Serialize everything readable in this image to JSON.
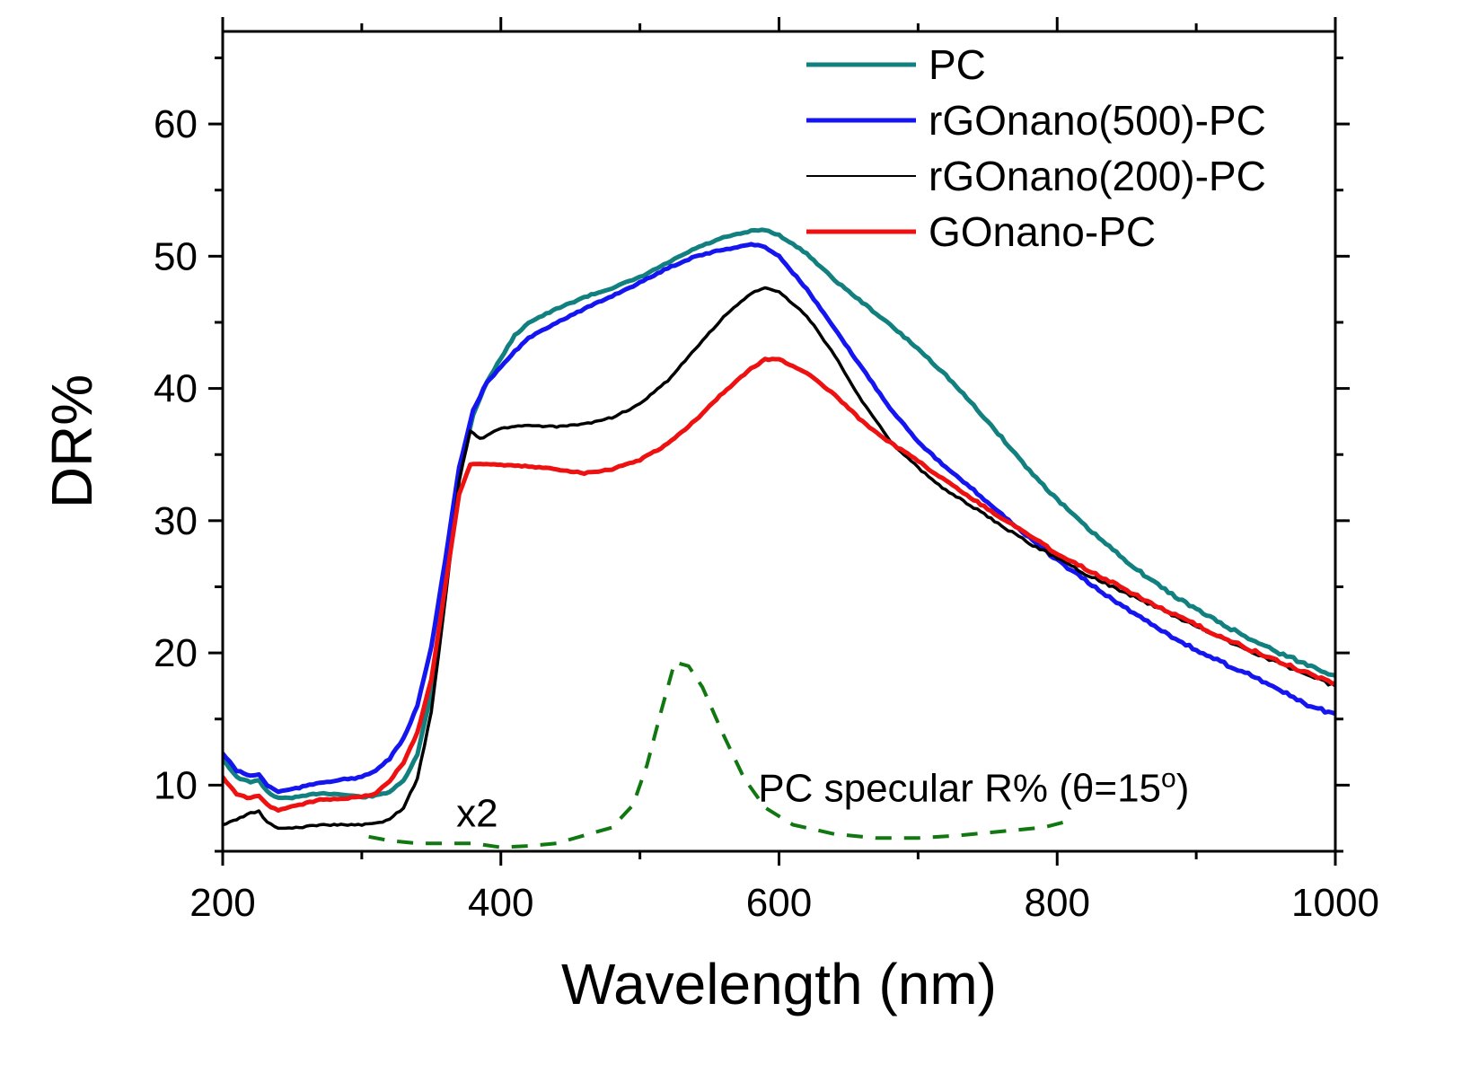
{
  "chart_data": {
    "type": "line",
    "title": "",
    "xlabel": "Wavelength (nm)",
    "ylabel": "DR%",
    "xlim": [
      200,
      1000
    ],
    "ylim": [
      5,
      67
    ],
    "xticks": [
      200,
      400,
      600,
      800,
      1000
    ],
    "yticks": [
      10,
      20,
      30,
      40,
      50,
      60
    ],
    "xtick_labels": [
      "200",
      "400",
      "600",
      "800",
      "1000"
    ],
    "ytick_labels": [
      "10",
      "20",
      "30",
      "40",
      "50",
      "60"
    ],
    "x_minor_step": 100,
    "y_minor_step": 5,
    "grid": false,
    "legend_position": "top-right",
    "series": [
      {
        "name": "PC",
        "color": "#138080",
        "style": "solid",
        "width": 5,
        "points": [
          [
            200,
            12
          ],
          [
            210,
            10.6
          ],
          [
            220,
            10.2
          ],
          [
            226,
            10.4
          ],
          [
            232,
            9.5
          ],
          [
            240,
            9
          ],
          [
            255,
            9.1
          ],
          [
            270,
            9.4
          ],
          [
            285,
            9.3
          ],
          [
            300,
            9.1
          ],
          [
            310,
            9.2
          ],
          [
            320,
            9.5
          ],
          [
            330,
            10.3
          ],
          [
            340,
            12.3
          ],
          [
            350,
            17
          ],
          [
            360,
            26
          ],
          [
            370,
            33.5
          ],
          [
            380,
            38
          ],
          [
            390,
            40.5
          ],
          [
            400,
            42.3
          ],
          [
            410,
            44
          ],
          [
            420,
            45
          ],
          [
            440,
            46
          ],
          [
            460,
            46.9
          ],
          [
            480,
            47.6
          ],
          [
            500,
            48.4
          ],
          [
            520,
            49.5
          ],
          [
            540,
            50.6
          ],
          [
            560,
            51.4
          ],
          [
            580,
            51.9
          ],
          [
            590,
            52
          ],
          [
            600,
            51.6
          ],
          [
            620,
            50.2
          ],
          [
            640,
            48.2
          ],
          [
            660,
            46.5
          ],
          [
            680,
            44.8
          ],
          [
            700,
            43
          ],
          [
            720,
            41
          ],
          [
            740,
            38.7
          ],
          [
            760,
            36.3
          ],
          [
            780,
            33.8
          ],
          [
            800,
            31.6
          ],
          [
            820,
            29.6
          ],
          [
            840,
            27.8
          ],
          [
            860,
            26.1
          ],
          [
            880,
            24.6
          ],
          [
            900,
            23.3
          ],
          [
            920,
            22.1
          ],
          [
            940,
            21
          ],
          [
            960,
            20
          ],
          [
            980,
            19.1
          ],
          [
            1000,
            18.3
          ]
        ]
      },
      {
        "name": "rGOnano(500)-PC",
        "color": "#1515f0",
        "style": "solid",
        "width": 5,
        "points": [
          [
            200,
            12.4
          ],
          [
            210,
            11.1
          ],
          [
            220,
            10.7
          ],
          [
            226,
            10.8
          ],
          [
            232,
            10
          ],
          [
            240,
            9.5
          ],
          [
            255,
            9.8
          ],
          [
            270,
            10.2
          ],
          [
            285,
            10.4
          ],
          [
            300,
            10.6
          ],
          [
            310,
            11.1
          ],
          [
            320,
            12
          ],
          [
            330,
            13.5
          ],
          [
            340,
            16
          ],
          [
            350,
            20.5
          ],
          [
            360,
            27
          ],
          [
            370,
            34
          ],
          [
            380,
            38.3
          ],
          [
            390,
            40.5
          ],
          [
            400,
            41.6
          ],
          [
            410,
            42.8
          ],
          [
            420,
            43.8
          ],
          [
            440,
            45
          ],
          [
            460,
            46
          ],
          [
            480,
            47
          ],
          [
            500,
            48
          ],
          [
            520,
            49.1
          ],
          [
            540,
            50
          ],
          [
            560,
            50.5
          ],
          [
            580,
            50.9
          ],
          [
            590,
            50.7
          ],
          [
            600,
            50
          ],
          [
            620,
            47.5
          ],
          [
            640,
            44.5
          ],
          [
            660,
            41.5
          ],
          [
            680,
            38.5
          ],
          [
            700,
            36
          ],
          [
            720,
            34
          ],
          [
            740,
            32.3
          ],
          [
            760,
            30.5
          ],
          [
            780,
            28.7
          ],
          [
            800,
            27
          ],
          [
            820,
            25.5
          ],
          [
            840,
            24
          ],
          [
            860,
            22.7
          ],
          [
            880,
            21.4
          ],
          [
            900,
            20.2
          ],
          [
            920,
            19.2
          ],
          [
            940,
            18.3
          ],
          [
            960,
            17.2
          ],
          [
            980,
            16
          ],
          [
            1000,
            15.4
          ]
        ]
      },
      {
        "name": "rGOnano(200)-PC",
        "color": "#000000",
        "style": "solid",
        "width": 3.5,
        "points": [
          [
            200,
            7
          ],
          [
            210,
            7.4
          ],
          [
            220,
            7.9
          ],
          [
            226,
            8
          ],
          [
            232,
            7.2
          ],
          [
            240,
            6.7
          ],
          [
            255,
            6.8
          ],
          [
            270,
            7
          ],
          [
            285,
            7
          ],
          [
            300,
            7
          ],
          [
            310,
            7.1
          ],
          [
            320,
            7.4
          ],
          [
            330,
            8.3
          ],
          [
            340,
            10.5
          ],
          [
            350,
            15.5
          ],
          [
            360,
            24
          ],
          [
            370,
            33
          ],
          [
            378,
            36.8
          ],
          [
            385,
            36.2
          ],
          [
            390,
            36.4
          ],
          [
            400,
            37
          ],
          [
            420,
            37.2
          ],
          [
            440,
            37.1
          ],
          [
            460,
            37.3
          ],
          [
            480,
            37.8
          ],
          [
            500,
            38.8
          ],
          [
            520,
            40.6
          ],
          [
            540,
            43
          ],
          [
            560,
            45.4
          ],
          [
            580,
            47.2
          ],
          [
            590,
            47.6
          ],
          [
            600,
            47.3
          ],
          [
            620,
            45.5
          ],
          [
            640,
            42.5
          ],
          [
            660,
            39
          ],
          [
            680,
            36
          ],
          [
            700,
            34
          ],
          [
            720,
            32.3
          ],
          [
            740,
            31
          ],
          [
            760,
            29.6
          ],
          [
            780,
            28.3
          ],
          [
            800,
            27.2
          ],
          [
            820,
            26
          ],
          [
            840,
            25
          ],
          [
            860,
            24
          ],
          [
            880,
            23
          ],
          [
            900,
            22
          ],
          [
            920,
            21
          ],
          [
            940,
            20.1
          ],
          [
            960,
            19.2
          ],
          [
            980,
            18.3
          ],
          [
            1000,
            17.5
          ]
        ]
      },
      {
        "name": "GOnano-PC",
        "color": "#ee1111",
        "style": "solid",
        "width": 5,
        "points": [
          [
            200,
            10.6
          ],
          [
            210,
            9.3
          ],
          [
            220,
            9
          ],
          [
            226,
            9.2
          ],
          [
            232,
            8.5
          ],
          [
            240,
            8.1
          ],
          [
            255,
            8.5
          ],
          [
            270,
            8.9
          ],
          [
            285,
            9
          ],
          [
            300,
            9.1
          ],
          [
            310,
            9.4
          ],
          [
            320,
            10.3
          ],
          [
            330,
            11.7
          ],
          [
            340,
            14
          ],
          [
            350,
            18
          ],
          [
            360,
            25
          ],
          [
            370,
            32
          ],
          [
            378,
            34.3
          ],
          [
            385,
            34.3
          ],
          [
            400,
            34.2
          ],
          [
            420,
            34.1
          ],
          [
            440,
            33.9
          ],
          [
            460,
            33.6
          ],
          [
            480,
            33.9
          ],
          [
            500,
            34.6
          ],
          [
            520,
            35.8
          ],
          [
            540,
            37.6
          ],
          [
            560,
            39.7
          ],
          [
            580,
            41.5
          ],
          [
            590,
            42.2
          ],
          [
            600,
            42.2
          ],
          [
            620,
            41.2
          ],
          [
            640,
            39.5
          ],
          [
            660,
            37.5
          ],
          [
            680,
            35.9
          ],
          [
            700,
            34.5
          ],
          [
            720,
            33
          ],
          [
            740,
            31.6
          ],
          [
            760,
            30.2
          ],
          [
            780,
            28.9
          ],
          [
            800,
            27.5
          ],
          [
            820,
            26.4
          ],
          [
            840,
            25.3
          ],
          [
            860,
            24.2
          ],
          [
            880,
            23.1
          ],
          [
            900,
            22.1
          ],
          [
            920,
            21.1
          ],
          [
            940,
            20.2
          ],
          [
            960,
            19.3
          ],
          [
            980,
            18.5
          ],
          [
            1000,
            17.7
          ]
        ]
      },
      {
        "name": "PC specular R% (θ=15°)",
        "color": "#117711",
        "style": "dashed",
        "width": 4,
        "points": [
          [
            305,
            6.1
          ],
          [
            320,
            5.8
          ],
          [
            340,
            5.6
          ],
          [
            360,
            5.6
          ],
          [
            380,
            5.6
          ],
          [
            400,
            5.3
          ],
          [
            420,
            5.4
          ],
          [
            440,
            5.6
          ],
          [
            460,
            6.2
          ],
          [
            480,
            6.8
          ],
          [
            495,
            8.5
          ],
          [
            505,
            11.5
          ],
          [
            515,
            15.5
          ],
          [
            525,
            19.3
          ],
          [
            535,
            19
          ],
          [
            545,
            17.4
          ],
          [
            560,
            13.8
          ],
          [
            575,
            10.5
          ],
          [
            590,
            8.3
          ],
          [
            610,
            7
          ],
          [
            640,
            6.3
          ],
          [
            670,
            6
          ],
          [
            700,
            6
          ],
          [
            730,
            6.2
          ],
          [
            760,
            6.5
          ],
          [
            790,
            6.8
          ],
          [
            805,
            7.2
          ]
        ]
      }
    ],
    "legend": [
      {
        "label": "PC",
        "color": "#138080",
        "width": 5
      },
      {
        "label": "rGOnano(500)-PC",
        "color": "#1515f0",
        "width": 5
      },
      {
        "label": "rGOnano(200)-PC",
        "color": "#000000",
        "width": 2
      },
      {
        "label": "GOnano-PC",
        "color": "#ee1111",
        "width": 5
      }
    ],
    "annotations": [
      {
        "text": "x2",
        "x": 383,
        "y": 7.9
      },
      {
        "text": "PC specular R% (θ=15",
        "superscript": "o",
        "suffix": ")",
        "x": 585,
        "y": 9.8
      }
    ]
  }
}
